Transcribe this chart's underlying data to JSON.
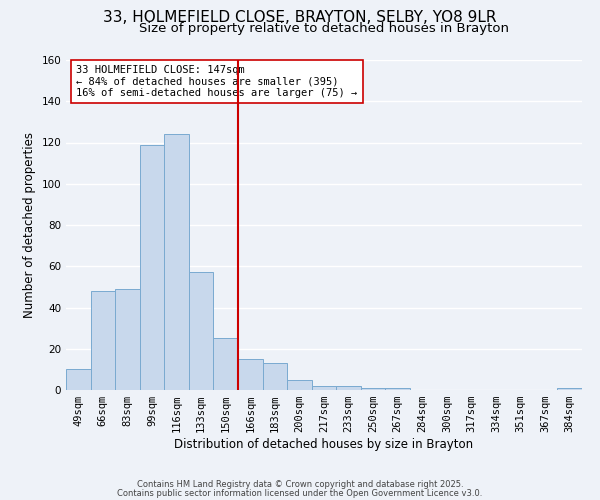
{
  "title": "33, HOLMEFIELD CLOSE, BRAYTON, SELBY, YO8 9LR",
  "subtitle": "Size of property relative to detached houses in Brayton",
  "xlabel": "Distribution of detached houses by size in Brayton",
  "ylabel": "Number of detached properties",
  "bar_labels": [
    "49sqm",
    "66sqm",
    "83sqm",
    "99sqm",
    "116sqm",
    "133sqm",
    "150sqm",
    "166sqm",
    "183sqm",
    "200sqm",
    "217sqm",
    "233sqm",
    "250sqm",
    "267sqm",
    "284sqm",
    "300sqm",
    "317sqm",
    "334sqm",
    "351sqm",
    "367sqm",
    "384sqm"
  ],
  "bar_values": [
    10,
    48,
    49,
    119,
    124,
    57,
    25,
    15,
    13,
    5,
    2,
    2,
    1,
    1,
    0,
    0,
    0,
    0,
    0,
    0,
    1
  ],
  "bar_color": "#c8d8ec",
  "bar_edge_color": "#7aaad0",
  "vline_x": 6.5,
  "vline_color": "#cc0000",
  "annotation_text": "33 HOLMEFIELD CLOSE: 147sqm\n← 84% of detached houses are smaller (395)\n16% of semi-detached houses are larger (75) →",
  "annotation_box_edge": "#cc0000",
  "ylim": [
    0,
    160
  ],
  "yticks": [
    0,
    20,
    40,
    60,
    80,
    100,
    120,
    140,
    160
  ],
  "footer1": "Contains HM Land Registry data © Crown copyright and database right 2025.",
  "footer2": "Contains public sector information licensed under the Open Government Licence v3.0.",
  "background_color": "#eef2f8",
  "grid_color": "#ffffff",
  "title_fontsize": 11,
  "subtitle_fontsize": 9.5,
  "axis_label_fontsize": 8.5,
  "tick_fontsize": 7.5,
  "annotation_fontsize": 7.5,
  "footer_fontsize": 6.0
}
